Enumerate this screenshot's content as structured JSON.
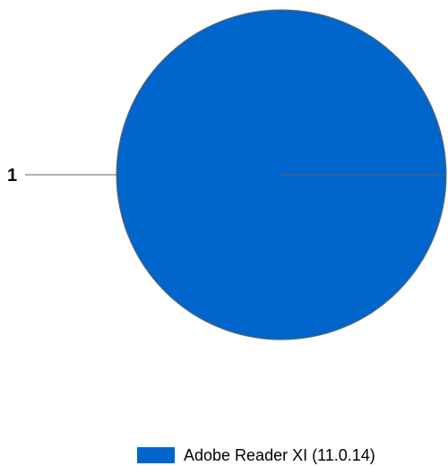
{
  "chart_data": {
    "type": "pie",
    "categories": [
      "Adobe Reader XI (11.0.14)"
    ],
    "values": [
      1
    ],
    "data_labels": [
      "1"
    ],
    "colors": [
      "#0066CC"
    ],
    "slice_border_color": "#666666",
    "legend": {
      "placement": "bottom-right",
      "entries": [
        "Adobe Reader XI (11.0.14)"
      ]
    }
  }
}
